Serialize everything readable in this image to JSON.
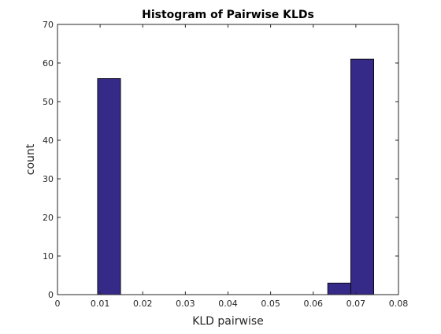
{
  "chart_data": {
    "type": "bar",
    "title": "Histogram of Pairwise KLDs",
    "xlabel": "KLD pairwise",
    "ylabel": "count",
    "xlim": [
      0,
      0.08
    ],
    "ylim": [
      0,
      70
    ],
    "xticks": [
      0,
      0.01,
      0.02,
      0.03,
      0.04,
      0.05,
      0.06,
      0.07,
      0.08
    ],
    "xtick_labels": [
      "0",
      "0.01",
      "0.02",
      "0.03",
      "0.04",
      "0.05",
      "0.06",
      "0.07",
      "0.08"
    ],
    "yticks": [
      0,
      10,
      20,
      30,
      40,
      50,
      60,
      70
    ],
    "ytick_labels": [
      "0",
      "10",
      "20",
      "30",
      "40",
      "50",
      "60",
      "70"
    ],
    "bin_edges": [
      0.0094,
      0.0148,
      0.0202,
      0.0256,
      0.031,
      0.0364,
      0.0418,
      0.0472,
      0.0526,
      0.058,
      0.0634,
      0.0688,
      0.0742
    ],
    "counts": [
      56,
      0,
      0,
      0,
      0,
      0,
      0,
      0,
      0,
      0,
      3,
      61
    ],
    "bar_color": "#352a87",
    "grid": false,
    "legend": "none"
  }
}
